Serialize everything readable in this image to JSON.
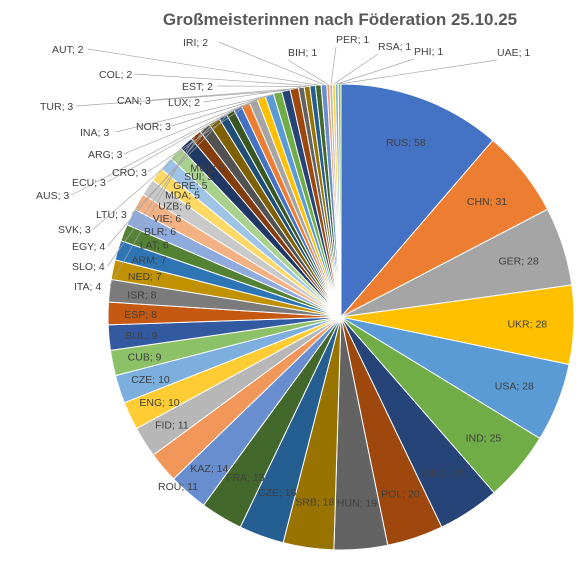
{
  "chart_data": {
    "type": "pie",
    "title": "Großmeisterinnen nach Föderation 25.10.25",
    "label_format": "{category}; {value}",
    "slices": [
      {
        "category": "RUS",
        "value": 58,
        "color": "#4472C4"
      },
      {
        "category": "CHN",
        "value": 31,
        "color": "#ED7D31"
      },
      {
        "category": "GER",
        "value": 28,
        "color": "#A5A5A5"
      },
      {
        "category": "UKR",
        "value": 28,
        "color": "#FFC000"
      },
      {
        "category": "USA",
        "value": 28,
        "color": "#5B9BD5"
      },
      {
        "category": "IND",
        "value": 25,
        "color": "#70AD47"
      },
      {
        "category": "GEO",
        "value": 22,
        "color": "#264478"
      },
      {
        "category": "POL",
        "value": 20,
        "color": "#9E480E"
      },
      {
        "category": "HUN",
        "value": 19,
        "color": "#636363"
      },
      {
        "category": "SRB",
        "value": 18,
        "color": "#997300"
      },
      {
        "category": "CZE",
        "value": 16,
        "color": "#255E91"
      },
      {
        "category": "FRA",
        "value": 15,
        "color": "#43682B"
      },
      {
        "category": "KAZ",
        "value": 14,
        "color": "#698ED0"
      },
      {
        "category": "ROU",
        "value": 11,
        "color": "#F1975A"
      },
      {
        "category": "FID",
        "value": 11,
        "color": "#B7B7B7"
      },
      {
        "category": "ENG",
        "value": 10,
        "color": "#FFCD33"
      },
      {
        "category": "CZE",
        "value": 10,
        "color": "#7CAFDD"
      },
      {
        "category": "CUB",
        "value": 9,
        "color": "#8CC168"
      },
      {
        "category": "BUL",
        "value": 9,
        "color": "#335AA1"
      },
      {
        "category": "ESP",
        "value": 8,
        "color": "#C65911"
      },
      {
        "category": "ISR",
        "value": 8,
        "color": "#7B7B7B"
      },
      {
        "category": "NED",
        "value": 7,
        "color": "#C09100"
      },
      {
        "category": "ARM",
        "value": 7,
        "color": "#2E75B6"
      },
      {
        "category": "LAT",
        "value": 6,
        "color": "#548235"
      },
      {
        "category": "BLR",
        "value": 6,
        "color": "#8FAADC"
      },
      {
        "category": "VIE",
        "value": 6,
        "color": "#F4B183"
      },
      {
        "category": "UZB",
        "value": 6,
        "color": "#C9C9C9"
      },
      {
        "category": "MDA",
        "value": 5,
        "color": "#FFD966"
      },
      {
        "category": "GRE",
        "value": 5,
        "color": "#9DC3E6"
      },
      {
        "category": "SUI",
        "value": 5,
        "color": "#A9D18E"
      },
      {
        "category": "MGL",
        "value": 5,
        "color": "#203864"
      },
      {
        "category": "ITA",
        "value": 4,
        "color": "#843C0C"
      },
      {
        "category": "SLO",
        "value": 4,
        "color": "#525252"
      },
      {
        "category": "EGY",
        "value": 4,
        "color": "#7F6000"
      },
      {
        "category": "SVK",
        "value": 3,
        "color": "#1F4E79"
      },
      {
        "category": "LTU",
        "value": 3,
        "color": "#385723"
      },
      {
        "category": "AUS",
        "value": 3,
        "color": "#4472C4"
      },
      {
        "category": "ECU",
        "value": 3,
        "color": "#ED7D31"
      },
      {
        "category": "CRO",
        "value": 3,
        "color": "#A5A5A5"
      },
      {
        "category": "ARG",
        "value": 3,
        "color": "#FFC000"
      },
      {
        "category": "INA",
        "value": 3,
        "color": "#5B9BD5"
      },
      {
        "category": "NOR",
        "value": 3,
        "color": "#70AD47"
      },
      {
        "category": "TUR",
        "value": 3,
        "color": "#264478"
      },
      {
        "category": "CAN",
        "value": 3,
        "color": "#9E480E"
      },
      {
        "category": "LUX",
        "value": 2,
        "color": "#636363"
      },
      {
        "category": "EST",
        "value": 2,
        "color": "#997300"
      },
      {
        "category": "COL",
        "value": 2,
        "color": "#255E91"
      },
      {
        "category": "AUT",
        "value": 2,
        "color": "#43682B"
      },
      {
        "category": "IRI",
        "value": 2,
        "color": "#698ED0"
      },
      {
        "category": "BIH",
        "value": 1,
        "color": "#F1975A"
      },
      {
        "category": "PER",
        "value": 1,
        "color": "#B7B7B7"
      },
      {
        "category": "RSA",
        "value": 1,
        "color": "#FFCD33"
      },
      {
        "category": "PHI",
        "value": 1,
        "color": "#7CAFDD"
      },
      {
        "category": "UAE",
        "value": 1,
        "color": "#8CC168"
      }
    ]
  }
}
